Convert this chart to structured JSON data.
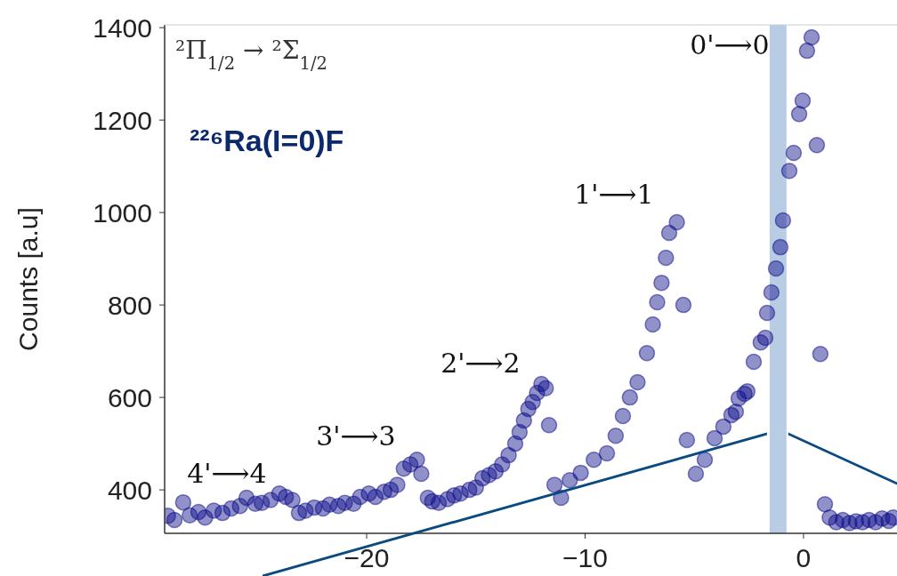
{
  "chart_data": {
    "type": "scatter",
    "title": "²Π$_{1/2}$ → ²Σ$_{1/2}$",
    "subtitle": "²²⁶Ra(I=0)F",
    "ylabel": "Counts [a.u]",
    "annotations": [
      "0'⟶0",
      "1'⟶1",
      "2'⟶2",
      "3'⟶3",
      "4'⟶4"
    ],
    "xlim": [
      -29.25,
      4.28
    ],
    "ylim": [
      306,
      1406
    ],
    "xticks": [
      {
        "value": -20,
        "label": "−20"
      },
      {
        "value": -10,
        "label": "−10"
      },
      0
    ],
    "yticks": [
      400,
      600,
      800,
      1000,
      1200,
      1400
    ],
    "bands": [
      {
        "axis": "x",
        "from": -1.55,
        "to": -0.78,
        "color": "#b8cce4"
      }
    ],
    "marker": "circle",
    "grid": false,
    "series": [
      {
        "color": "#0a0a8a",
        "x": [
          -29.1,
          -28.8,
          -28.4,
          -28.1,
          -27.7,
          -27.4,
          -27.0,
          -26.6,
          -26.2,
          -25.8,
          -25.5,
          -25.1,
          -24.8,
          -24.4,
          -24.0,
          -23.7,
          -23.4,
          -23.1,
          -22.8,
          -22.4,
          -22.0,
          -21.7,
          -21.3,
          -21.0,
          -20.6,
          -20.3,
          -19.9,
          -19.6,
          -19.2,
          -18.9,
          -18.6,
          -18.3,
          -18.0,
          -17.7,
          -17.5,
          -17.2,
          -17.0,
          -16.7,
          -16.3,
          -16.0,
          -15.7,
          -15.3,
          -15.0,
          -14.7,
          -14.4,
          -14.1,
          -13.8,
          -13.5,
          -13.2,
          -13.0,
          -12.8,
          -12.6,
          -12.4,
          -12.2,
          -12.0,
          -11.8,
          -11.65,
          -11.4,
          -11.1,
          -10.7,
          -10.2,
          -9.6,
          -9.0,
          -8.6,
          -8.27,
          -7.95,
          -7.6,
          -7.17,
          -6.9,
          -6.7,
          -6.5,
          -6.3,
          -6.15,
          -5.8,
          -5.5,
          -5.34,
          -4.93,
          -4.52,
          -4.07,
          -3.67,
          -3.3,
          -3.1,
          -2.97,
          -2.7,
          -2.57,
          -2.28,
          -1.96,
          -1.75,
          -1.67,
          -1.47,
          -1.26,
          -1.06,
          -0.94,
          -0.65,
          -0.45,
          -0.2,
          -0.04,
          0.16,
          0.37,
          0.61,
          0.77,
          0.98,
          1.2,
          1.5,
          1.8,
          2.1,
          2.4,
          2.7,
          3.0,
          3.3,
          3.6,
          3.9,
          4.1
        ],
        "values": [
          344,
          335,
          373,
          345,
          352,
          340,
          355,
          350,
          360,
          365,
          383,
          370,
          372,
          378,
          392,
          385,
          378,
          350,
          355,
          362,
          360,
          368,
          365,
          372,
          370,
          385,
          392,
          385,
          396,
          400,
          411,
          446,
          455,
          465,
          435,
          383,
          375,
          372,
          380,
          388,
          392,
          400,
          405,
          425,
          432,
          440,
          455,
          475,
          500,
          525,
          550,
          575,
          590,
          610,
          629,
          620,
          540,
          411,
          383,
          421,
          437,
          465,
          479,
          517,
          560,
          600,
          633,
          696,
          758,
          806,
          848,
          902,
          956,
          979,
          800,
          508,
          435,
          465,
          512,
          537,
          562,
          569,
          598,
          608,
          613,
          677,
          719,
          729,
          783,
          827,
          879,
          925,
          983,
          1090,
          1129,
          1213,
          1242,
          1350,
          1379,
          1146,
          694,
          369,
          340,
          330,
          335,
          328,
          332,
          330,
          335,
          330,
          338,
          333,
          340
        ]
      }
    ]
  }
}
